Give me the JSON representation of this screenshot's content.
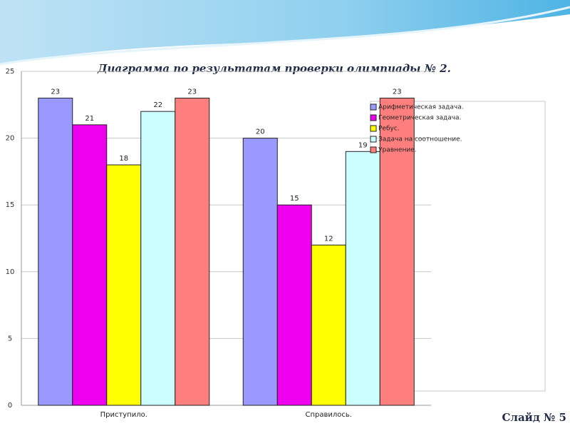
{
  "chart_data": {
    "type": "bar",
    "title": "Диаграмма по результатам проверки олимпиады № 2.",
    "categories": [
      "Приступило.",
      "Справилось."
    ],
    "series": [
      {
        "name": "Арифметическая задача.",
        "color": "#9999ff",
        "values": [
          23,
          20
        ]
      },
      {
        "name": "Геометрическая задача.",
        "color": "#ee00ee",
        "values": [
          21,
          15
        ]
      },
      {
        "name": "Ребус.",
        "color": "#ffff00",
        "values": [
          18,
          12
        ]
      },
      {
        "name": "Задача на соотношение.",
        "color": "#ccffff",
        "values": [
          22,
          19
        ]
      },
      {
        "name": "Уравнение.",
        "color": "#ff7f7f",
        "values": [
          23,
          23
        ]
      }
    ],
    "ylim": [
      0,
      25
    ],
    "yticks": [
      0,
      5,
      10,
      15,
      20,
      25
    ],
    "grid": true,
    "legend": "right"
  },
  "slide_label": "Слайд № 5"
}
